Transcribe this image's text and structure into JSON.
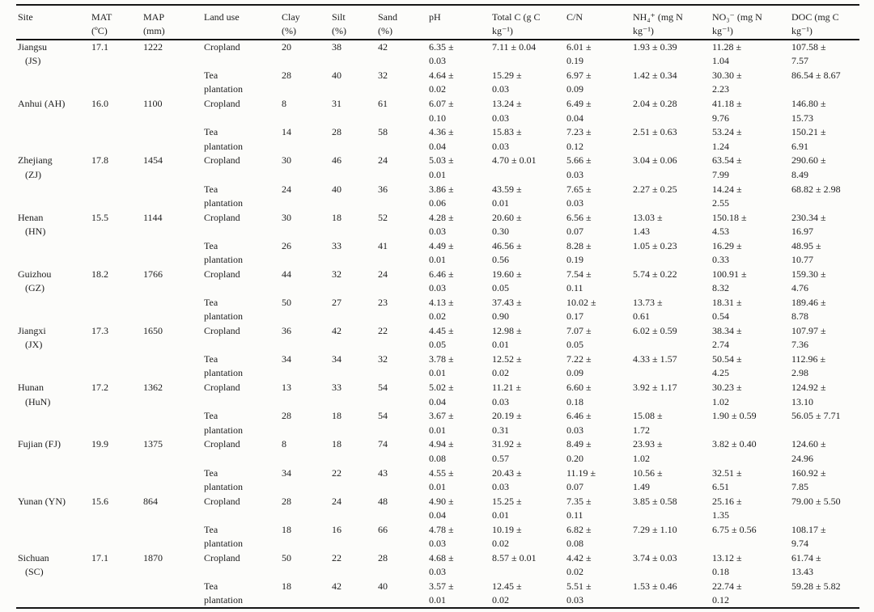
{
  "table": {
    "columns": [
      {
        "key": "site",
        "label": "Site"
      },
      {
        "key": "mat",
        "label": "MAT (ºC)"
      },
      {
        "key": "map",
        "label": "MAP (mm)"
      },
      {
        "key": "land",
        "label": "Land use"
      },
      {
        "key": "clay",
        "label": "Clay (%)"
      },
      {
        "key": "silt",
        "label": "Silt (%)"
      },
      {
        "key": "sand",
        "label": "Sand (%)"
      },
      {
        "key": "ph",
        "label": "pH"
      },
      {
        "key": "tc",
        "label": "Total C (g C kg⁻¹)"
      },
      {
        "key": "cn",
        "label": "C/N"
      },
      {
        "key": "nh4",
        "label": "NH₄⁺ (mg N kg⁻¹)"
      },
      {
        "key": "no3",
        "label": "NO₃⁻ (mg N kg⁻¹)"
      },
      {
        "key": "doc",
        "label": "DOC (mg C kg⁻¹)"
      }
    ],
    "sites": [
      {
        "site_lines": [
          "Jiangsu",
          "(JS)"
        ],
        "mat": "17.1",
        "map": "1222",
        "rows": [
          {
            "land": "Cropland",
            "clay": "20",
            "silt": "38",
            "sand": "42",
            "ph": "6.35 ± 0.03",
            "tc": "7.11 ± 0.04",
            "cn": "6.01 ± 0.19",
            "nh4": "1.93 ± 0.39",
            "no3": "11.28 ± 1.04",
            "doc": "107.58 ± 7.57"
          },
          {
            "land": "Tea plantation",
            "clay": "28",
            "silt": "40",
            "sand": "32",
            "ph": "4.64 ± 0.02",
            "tc": "15.29 ± 0.03",
            "cn": "6.97 ± 0.09",
            "nh4": "1.42 ± 0.34",
            "no3": "30.30 ± 2.23",
            "doc": "86.54 ± 8.67"
          }
        ]
      },
      {
        "site_lines": [
          "Anhui (AH)"
        ],
        "mat": "16.0",
        "map": "1100",
        "rows": [
          {
            "land": "Cropland",
            "clay": "8",
            "silt": "31",
            "sand": "61",
            "ph": "6.07 ± 0.10",
            "tc": "13.24 ± 0.03",
            "cn": "6.49 ± 0.04",
            "nh4": "2.04 ± 0.28",
            "no3": "41.18 ± 9.76",
            "doc": "146.80 ± 15.73"
          },
          {
            "land": "Tea plantation",
            "clay": "14",
            "silt": "28",
            "sand": "58",
            "ph": "4.36 ± 0.04",
            "tc": "15.83 ± 0.03",
            "cn": "7.23 ± 0.12",
            "nh4": "2.51 ± 0.63",
            "no3": "53.24 ± 1.24",
            "doc": "150.21 ± 6.91"
          }
        ]
      },
      {
        "site_lines": [
          "Zhejiang",
          "(ZJ)"
        ],
        "mat": "17.8",
        "map": "1454",
        "rows": [
          {
            "land": "Cropland",
            "clay": "30",
            "silt": "46",
            "sand": "24",
            "ph": "5.03 ± 0.01",
            "tc": "4.70 ± 0.01",
            "cn": "5.66 ± 0.03",
            "nh4": "3.04 ± 0.06",
            "no3": "63.54 ± 7.99",
            "doc": "290.60 ± 8.49"
          },
          {
            "land": "Tea plantation",
            "clay": "24",
            "silt": "40",
            "sand": "36",
            "ph": "3.86 ± 0.06",
            "tc": "43.59 ± 0.01",
            "cn": "7.65 ± 0.03",
            "nh4": "2.27 ± 0.25",
            "no3": "14.24 ± 2.55",
            "doc": "68.82 ± 2.98"
          }
        ]
      },
      {
        "site_lines": [
          "Henan",
          "(HN)"
        ],
        "mat": "15.5",
        "map": "1144",
        "rows": [
          {
            "land": "Cropland",
            "clay": "30",
            "silt": "18",
            "sand": "52",
            "ph": "4.28 ± 0.03",
            "tc": "20.60 ± 0.30",
            "cn": "6.56 ± 0.07",
            "nh4": "13.03 ± 1.43",
            "no3": "150.18 ± 4.53",
            "doc": "230.34 ± 16.97"
          },
          {
            "land": "Tea plantation",
            "clay": "26",
            "silt": "33",
            "sand": "41",
            "ph": "4.49 ± 0.01",
            "tc": "46.56 ± 0.56",
            "cn": "8.28 ± 0.19",
            "nh4": "1.05 ± 0.23",
            "no3": "16.29 ± 0.33",
            "doc": "48.95 ± 10.77"
          }
        ]
      },
      {
        "site_lines": [
          "Guizhou",
          "(GZ)"
        ],
        "mat": "18.2",
        "map": "1766",
        "rows": [
          {
            "land": "Cropland",
            "clay": "44",
            "silt": "32",
            "sand": "24",
            "ph": "6.46 ± 0.03",
            "tc": "19.60 ± 0.05",
            "cn": "7.54 ± 0.11",
            "nh4": "5.74 ± 0.22",
            "no3": "100.91 ± 8.32",
            "doc": "159.30 ± 4.76"
          },
          {
            "land": "Tea plantation",
            "clay": "50",
            "silt": "27",
            "sand": "23",
            "ph": "4.13 ± 0.02",
            "tc": "37.43 ± 0.90",
            "cn": "10.02 ± 0.17",
            "nh4": "13.73 ± 0.61",
            "no3": "18.31 ± 0.54",
            "doc": "189.46 ± 8.78"
          }
        ]
      },
      {
        "site_lines": [
          "Jiangxi",
          "(JX)"
        ],
        "mat": "17.3",
        "map": "1650",
        "rows": [
          {
            "land": "Cropland",
            "clay": "36",
            "silt": "42",
            "sand": "22",
            "ph": "4.45 ± 0.05",
            "tc": "12.98 ± 0.01",
            "cn": "7.07 ± 0.05",
            "nh4": "6.02 ± 0.59",
            "no3": "38.34 ± 2.74",
            "doc": "107.97 ± 7.36"
          },
          {
            "land": "Tea plantation",
            "clay": "34",
            "silt": "34",
            "sand": "32",
            "ph": "3.78 ± 0.01",
            "tc": "12.52 ± 0.02",
            "cn": "7.22 ± 0.09",
            "nh4": "4.33 ± 1.57",
            "no3": "50.54 ± 4.25",
            "doc": "112.96 ± 2.98"
          }
        ]
      },
      {
        "site_lines": [
          "Hunan",
          "(HuN)"
        ],
        "mat": "17.2",
        "map": "1362",
        "rows": [
          {
            "land": "Cropland",
            "clay": "13",
            "silt": "33",
            "sand": "54",
            "ph": "5.02 ± 0.04",
            "tc": "11.21 ± 0.03",
            "cn": "6.60 ± 0.18",
            "nh4": "3.92 ± 1.17",
            "no3": "30.23 ± 1.02",
            "doc": "124.92 ± 13.10"
          },
          {
            "land": "Tea plantation",
            "clay": "28",
            "silt": "18",
            "sand": "54",
            "ph": "3.67 ± 0.01",
            "tc": "20.19 ± 0.31",
            "cn": "6.46 ± 0.03",
            "nh4": "15.08 ± 1.72",
            "no3": "1.90 ± 0.59",
            "doc": "56.05 ± 7.71"
          }
        ]
      },
      {
        "site_lines": [
          "Fujian (FJ)"
        ],
        "mat": "19.9",
        "map": "1375",
        "rows": [
          {
            "land": "Cropland",
            "clay": "8",
            "silt": "18",
            "sand": "74",
            "ph": "4.94 ± 0.08",
            "tc": "31.92 ± 0.57",
            "cn": "8.49 ± 0.20",
            "nh4": "23.93 ± 1.02",
            "no3": "3.82 ± 0.40",
            "doc": "124.60 ± 24.96"
          },
          {
            "land": "Tea plantation",
            "clay": "34",
            "silt": "22",
            "sand": "43",
            "ph": "4.55 ± 0.01",
            "tc": "20.43 ± 0.03",
            "cn": "11.19 ± 0.07",
            "nh4": "10.56 ± 1.49",
            "no3": "32.51 ± 6.51",
            "doc": "160.92 ± 7.85"
          }
        ]
      },
      {
        "site_lines": [
          "Yunan (YN)"
        ],
        "mat": "15.6",
        "map": "864",
        "rows": [
          {
            "land": "Cropland",
            "clay": "28",
            "silt": "24",
            "sand": "48",
            "ph": "4.90 ± 0.04",
            "tc": "15.25 ± 0.01",
            "cn": "7.35 ± 0.11",
            "nh4": "3.85 ± 0.58",
            "no3": "25.16 ± 1.35",
            "doc": "79.00 ± 5.50"
          },
          {
            "land": "Tea plantation",
            "clay": "18",
            "silt": "16",
            "sand": "66",
            "ph": "4.78 ± 0.03",
            "tc": "10.19 ± 0.02",
            "cn": "6.82 ± 0.08",
            "nh4": "7.29 ± 1.10",
            "no3": "6.75 ± 0.56",
            "doc": "108.17 ± 9.74"
          }
        ]
      },
      {
        "site_lines": [
          "Sichuan",
          "(SC)"
        ],
        "mat": "17.1",
        "map": "1870",
        "rows": [
          {
            "land": "Cropland",
            "clay": "50",
            "silt": "22",
            "sand": "28",
            "ph": "4.68 ± 0.03",
            "tc": "8.57 ± 0.01",
            "cn": "4.42 ± 0.02",
            "nh4": "3.74 ± 0.03",
            "no3": "13.12 ± 0.18",
            "doc": "61.74 ± 13.43"
          },
          {
            "land": "Tea plantation",
            "clay": "18",
            "silt": "42",
            "sand": "40",
            "ph": "3.57 ± 0.01",
            "tc": "12.45 ± 0.02",
            "cn": "5.51 ± 0.03",
            "nh4": "1.53 ± 0.46",
            "no3": "22.74 ± 0.12",
            "doc": "59.28 ± 5.82"
          }
        ]
      }
    ]
  }
}
